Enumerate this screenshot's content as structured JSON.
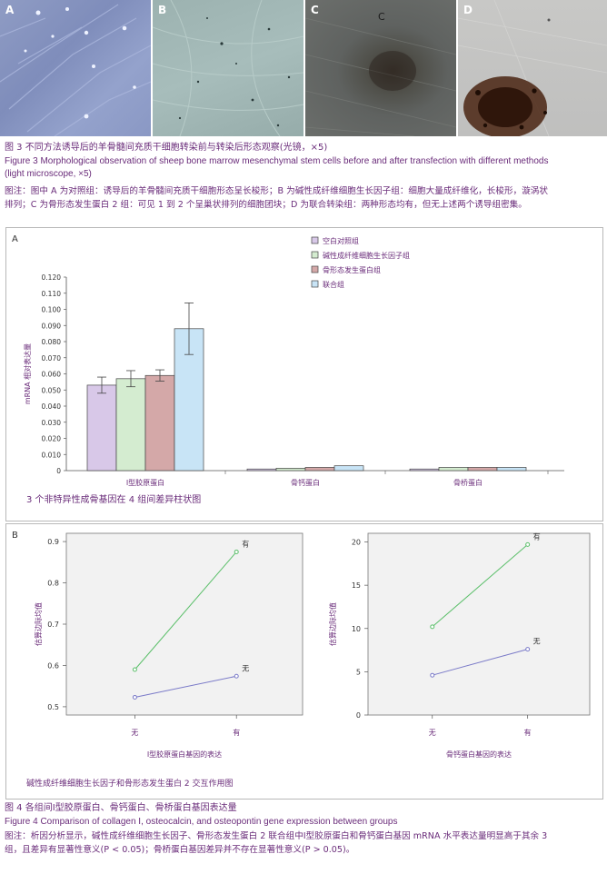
{
  "fig3": {
    "panels": [
      {
        "letter": "A",
        "letter2": ""
      },
      {
        "letter": "B",
        "letter2": ""
      },
      {
        "letter": "C",
        "letter2": "C"
      },
      {
        "letter": "D",
        "letter2": ""
      }
    ],
    "title_cn": "图 3   不同方法诱导后的羊骨髓间充质干细胞转染前与转染后形态观察(光镜，×5)",
    "title_en_1": "Figure 3   Morphological observation of sheep bone marrow mesenchymal stem cells before and after transfection with different methods",
    "title_en_2": "(light microscope, ×5)",
    "note_1": "图注：图中 A 为对照组：诱导后的羊骨髓间充质干细胞形态呈长梭形；B 为碱性成纤维细胞生长因子组：细胞大量成纤维化，长梭形，漩涡状",
    "note_2": "排列；C 为骨形态发生蛋白 2 组：可见 1 到 2 个呈巢状排列的细胞团块；D 为联合转染组：两种形态均有，但无上述两个诱导组密集。"
  },
  "fig4": {
    "panel_a_letter": "A",
    "panel_b_letter": "B",
    "bar_caption": "3 个非特异性成骨基因在 4 组间差异柱状图",
    "interaction_caption": "碱性成纤维细胞生长因子和骨形态发生蛋白 2 交互作用图",
    "title_cn": "图 4   各组间Ⅰ型胶原蛋白、骨钙蛋白、骨桥蛋白基因表达量",
    "title_en": "Figure 4   Comparison of collagen I, osteocalcin, and osteopontin gene expression between groups",
    "note_1": "图注：析因分析显示，碱性成纤维细胞生长因子、骨形态发生蛋白 2 联合组中Ⅰ型胶原蛋白和骨钙蛋白基因 mRNA 水平表达量明显高于其余 3",
    "note_2": "组，且差异有显著性意义(P < 0.05)；骨桥蛋白基因差异并不存在显著性意义(P > 0.05)。"
  },
  "colors": {
    "caption": "#6a2c7a",
    "bar_blank": "#d8c8e8",
    "bar_bfgf": "#d4ecd0",
    "bar_bmp2": "#d4a8a8",
    "bar_combined": "#c8e4f6",
    "line_yes": "#5bbf6a",
    "line_no": "#7a7ac8"
  },
  "chart_data": [
    {
      "type": "bar",
      "categories": [
        "Ⅰ型胶原蛋白",
        "骨钙蛋白",
        "骨桥蛋白"
      ],
      "series": [
        {
          "name": "空白对照组",
          "values": [
            0.053,
            0.001,
            0.001
          ],
          "errors": [
            0.005,
            0,
            0
          ]
        },
        {
          "name": "碱性成纤维细胞生长因子组",
          "values": [
            0.057,
            0.0015,
            0.002
          ],
          "errors": [
            0.005,
            0,
            0
          ]
        },
        {
          "name": "骨形态发生蛋白组",
          "values": [
            0.059,
            0.002,
            0.002
          ],
          "errors": [
            0.0035,
            0,
            0
          ]
        },
        {
          "name": "联合组",
          "values": [
            0.088,
            0.003,
            0.002
          ],
          "errors": [
            0.016,
            0,
            0
          ]
        }
      ],
      "yticks": [
        "0",
        "0.010",
        "0.020",
        "0.030",
        "0.040",
        "0.050",
        "0.060",
        "0.070",
        "0.080",
        "0.090",
        "0.100",
        "0.110",
        "0.120"
      ],
      "ylim": [
        0,
        0.12
      ],
      "ylabel": "mRNA 相对表达量",
      "legend_position": "top-right"
    },
    {
      "type": "line",
      "x": [
        "无",
        "有"
      ],
      "series": [
        {
          "name": "有",
          "values": [
            0.59,
            0.875
          ]
        },
        {
          "name": "无",
          "values": [
            0.523,
            0.574
          ]
        }
      ],
      "yticks": [
        "0.5",
        "0.6",
        "0.7",
        "0.8",
        "0.9"
      ],
      "ylim": [
        0.48,
        0.92
      ],
      "xlabel": "Ⅰ型胶原蛋白基因的表达",
      "ylabel": "估算边际均值"
    },
    {
      "type": "line",
      "x": [
        "无",
        "有"
      ],
      "series": [
        {
          "name": "有",
          "values": [
            10.2,
            19.7
          ]
        },
        {
          "name": "无",
          "values": [
            4.6,
            7.6
          ]
        }
      ],
      "yticks": [
        "0",
        "5",
        "10",
        "15",
        "20"
      ],
      "ylim": [
        0,
        21
      ],
      "xlabel": "骨钙蛋白基因的表达",
      "ylabel": "估算边际均值"
    }
  ]
}
